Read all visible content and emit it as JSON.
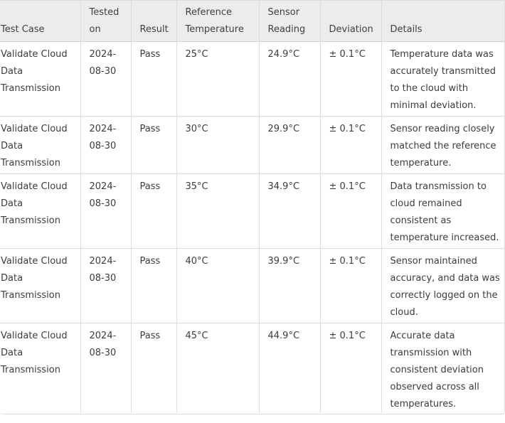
{
  "table": {
    "headers": [
      "Test Case",
      "Tested on",
      "Result",
      "Reference Temperature",
      "Sensor Reading",
      "Deviation",
      "Details"
    ],
    "rows": [
      {
        "test_case": "Validate Cloud Data Transmission",
        "tested_on": "2024-08-30",
        "result": "Pass",
        "reference_temperature": "25°C",
        "sensor_reading": "24.9°C",
        "deviation": "± 0.1°C",
        "details": "Temperature data was accurately transmitted to the cloud with minimal deviation."
      },
      {
        "test_case": "Validate Cloud Data Transmission",
        "tested_on": "2024-08-30",
        "result": "Pass",
        "reference_temperature": "30°C",
        "sensor_reading": "29.9°C",
        "deviation": "± 0.1°C",
        "details": "Sensor reading closely matched the reference temperature."
      },
      {
        "test_case": "Validate Cloud Data Transmission",
        "tested_on": "2024-08-30",
        "result": "Pass",
        "reference_temperature": "35°C",
        "sensor_reading": "34.9°C",
        "deviation": "± 0.1°C",
        "details": "Data transmission to cloud remained consistent as temperature increased."
      },
      {
        "test_case": "Validate Cloud Data Transmission",
        "tested_on": "2024-08-30",
        "result": "Pass",
        "reference_temperature": "40°C",
        "sensor_reading": "39.9°C",
        "deviation": "± 0.1°C",
        "details": "Sensor maintained accuracy, and data was correctly logged on the cloud."
      },
      {
        "test_case": "Validate Cloud Data Transmission",
        "tested_on": "2024-08-30",
        "result": "Pass",
        "reference_temperature": "45°C",
        "sensor_reading": "44.9°C",
        "deviation": "± 0.1°C",
        "details": "Accurate data transmission with consistent deviation observed across all temperatures."
      }
    ]
  }
}
